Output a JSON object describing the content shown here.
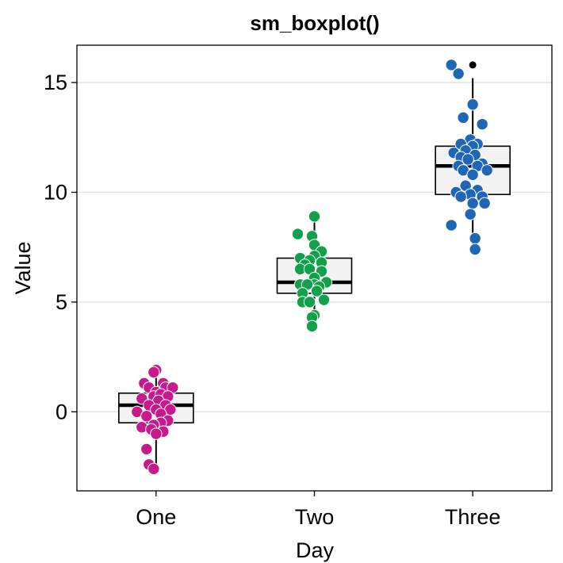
{
  "chart_data": {
    "type": "boxplot",
    "title": "sm_boxplot()",
    "xlabel": "Day",
    "ylabel": "Value",
    "categories": [
      "One",
      "Two",
      "Three"
    ],
    "y_ticks": [
      0,
      5,
      10,
      15
    ],
    "ylim": [
      -3.6,
      16.7
    ],
    "grid": "horizontal major",
    "colors": {
      "One": "#c8198c",
      "Two": "#13a04a",
      "Three": "#1f66b6",
      "box_fill": "#f2f2f2",
      "outlier": "#000000"
    },
    "boxes": [
      {
        "category": "One",
        "lower_whisker": -2.6,
        "q1": -0.5,
        "median": 0.3,
        "q3": 0.85,
        "upper_whisker": 1.9,
        "outliers": []
      },
      {
        "category": "Two",
        "lower_whisker": 4.0,
        "q1": 5.4,
        "median": 5.9,
        "q3": 7.0,
        "upper_whisker": 8.9,
        "outliers": []
      },
      {
        "category": "Three",
        "lower_whisker": 7.4,
        "q1": 9.9,
        "median": 11.2,
        "q3": 12.1,
        "upper_whisker": 15.2,
        "outliers": [
          15.8
        ]
      }
    ],
    "points": {
      "One": [
        [
          0.0,
          1.9
        ],
        [
          -0.1,
          1.8
        ],
        [
          0.3,
          1.3
        ],
        [
          -0.5,
          1.3
        ],
        [
          -0.3,
          1.1
        ],
        [
          0.4,
          1.1
        ],
        [
          0.7,
          1.1
        ],
        [
          0.0,
          0.9
        ],
        [
          -0.1,
          0.7
        ],
        [
          0.2,
          0.8
        ],
        [
          0.5,
          0.7
        ],
        [
          -0.6,
          0.6
        ],
        [
          0.1,
          0.5
        ],
        [
          0.4,
          0.3
        ],
        [
          -0.3,
          0.3
        ],
        [
          0.0,
          0.1
        ],
        [
          0.6,
          0.1
        ],
        [
          -0.8,
          0.0
        ],
        [
          0.2,
          -0.1
        ],
        [
          -0.4,
          -0.2
        ],
        [
          0.5,
          -0.4
        ],
        [
          0.2,
          -0.5
        ],
        [
          -0.1,
          -0.6
        ],
        [
          0.3,
          -0.9
        ],
        [
          -0.6,
          -0.7
        ],
        [
          -0.2,
          -0.8
        ],
        [
          0.0,
          -1.0
        ],
        [
          -0.4,
          -1.7
        ],
        [
          -0.3,
          -2.4
        ],
        [
          -0.1,
          -2.6
        ]
      ],
      "Two": [
        [
          0.0,
          8.9
        ],
        [
          -0.7,
          8.1
        ],
        [
          -0.1,
          8.0
        ],
        [
          0.0,
          7.6
        ],
        [
          0.3,
          7.3
        ],
        [
          0.0,
          7.1
        ],
        [
          -0.6,
          7.0
        ],
        [
          -0.2,
          6.9
        ],
        [
          -0.4,
          6.7
        ],
        [
          0.3,
          6.8
        ],
        [
          -0.6,
          6.5
        ],
        [
          -0.2,
          6.5
        ],
        [
          0.3,
          6.4
        ],
        [
          0.0,
          6.1
        ],
        [
          0.5,
          5.9
        ],
        [
          0.0,
          5.8
        ],
        [
          -0.6,
          5.8
        ],
        [
          -0.3,
          5.8
        ],
        [
          0.2,
          5.7
        ],
        [
          -0.5,
          5.4
        ],
        [
          0.1,
          5.5
        ],
        [
          0.4,
          5.1
        ],
        [
          -0.5,
          5.0
        ],
        [
          -0.2,
          5.0
        ],
        [
          0.0,
          4.4
        ],
        [
          -0.1,
          4.3
        ],
        [
          -0.1,
          3.9
        ]
      ],
      "Three": [
        [
          -0.9,
          15.8
        ],
        [
          -0.6,
          15.4
        ],
        [
          0.0,
          14.0
        ],
        [
          -0.4,
          13.4
        ],
        [
          0.4,
          13.1
        ],
        [
          -0.1,
          12.4
        ],
        [
          0.2,
          12.2
        ],
        [
          -0.5,
          12.2
        ],
        [
          0.0,
          12.1
        ],
        [
          -0.3,
          11.9
        ],
        [
          -0.8,
          11.8
        ],
        [
          -0.5,
          11.6
        ],
        [
          0.1,
          11.7
        ],
        [
          -0.2,
          11.5
        ],
        [
          0.4,
          11.3
        ],
        [
          -0.6,
          11.2
        ],
        [
          0.2,
          11.2
        ],
        [
          -0.4,
          11.0
        ],
        [
          0.6,
          11.0
        ],
        [
          0.0,
          10.8
        ],
        [
          -0.3,
          10.3
        ],
        [
          -0.7,
          10.0
        ],
        [
          0.2,
          10.1
        ],
        [
          -0.1,
          9.9
        ],
        [
          0.4,
          9.8
        ],
        [
          -0.5,
          9.8
        ],
        [
          0.0,
          9.5
        ],
        [
          0.5,
          9.5
        ],
        [
          -0.1,
          9.0
        ],
        [
          -0.9,
          8.5
        ],
        [
          0.1,
          7.9
        ],
        [
          0.1,
          7.4
        ]
      ]
    }
  }
}
